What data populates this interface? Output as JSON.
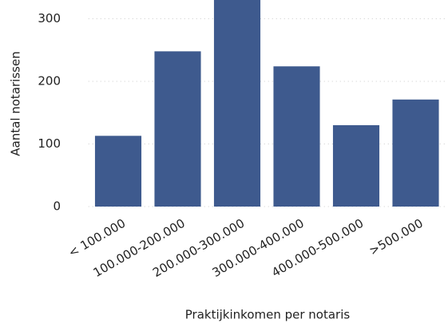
{
  "chart_data": {
    "type": "bar",
    "categories": [
      "< 100.000",
      "100.000-200.000",
      "200.000-300.000",
      "300.000-400.000",
      "400.000-500.000",
      ">500.000"
    ],
    "values": [
      113,
      248,
      330,
      224,
      130,
      171
    ],
    "color": "#3e5a8e",
    "ylim": [
      0,
      330
    ],
    "yticks": [
      0,
      100,
      200,
      300
    ],
    "grid": true,
    "ylabel": "Aantal notarissen",
    "xlabel": "Praktijkinkomen per notaris"
  }
}
